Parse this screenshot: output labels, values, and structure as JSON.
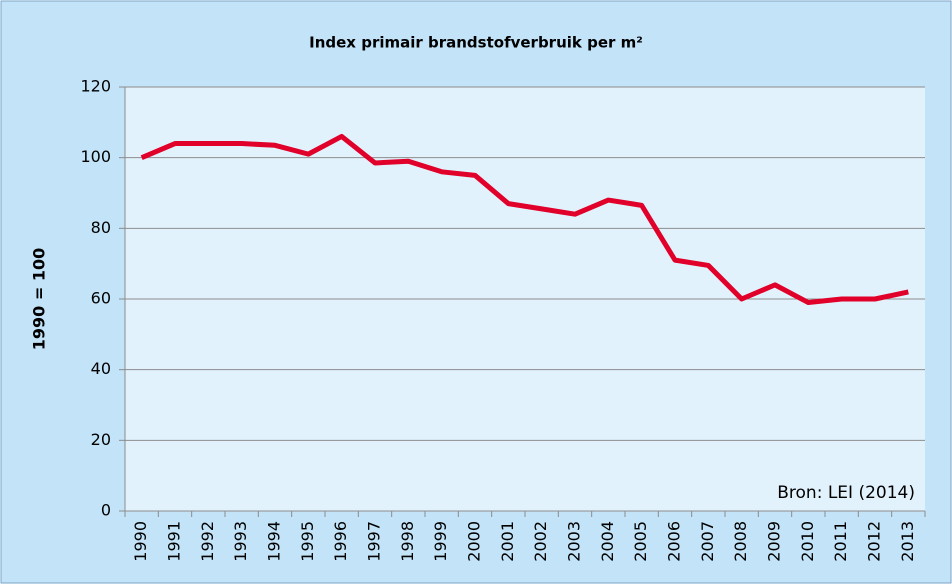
{
  "chart_data": {
    "type": "line",
    "title": "Index primair brandstofverbruik per m²",
    "y_label": "1990 = 100",
    "annotation": "Bron: LEI (2014)",
    "categories": [
      "1990",
      "1991",
      "1992",
      "1993",
      "1994",
      "1995",
      "1996",
      "1997",
      "1998",
      "1999",
      "2000",
      "2001",
      "2002",
      "2003",
      "2004",
      "2005",
      "2006",
      "2007",
      "2008",
      "2009",
      "2010",
      "2011",
      "2012",
      "2013"
    ],
    "values": [
      100,
      104,
      104,
      104,
      103.5,
      101,
      106,
      98.5,
      99,
      96,
      95,
      87,
      85.5,
      84,
      88,
      86.5,
      71,
      69.5,
      60,
      64,
      59,
      60,
      60,
      62
    ],
    "color": "#e0002a",
    "ylim": [
      0,
      120
    ],
    "yticks": [
      0,
      20,
      40,
      60,
      80,
      100,
      120
    ],
    "grid": true
  }
}
